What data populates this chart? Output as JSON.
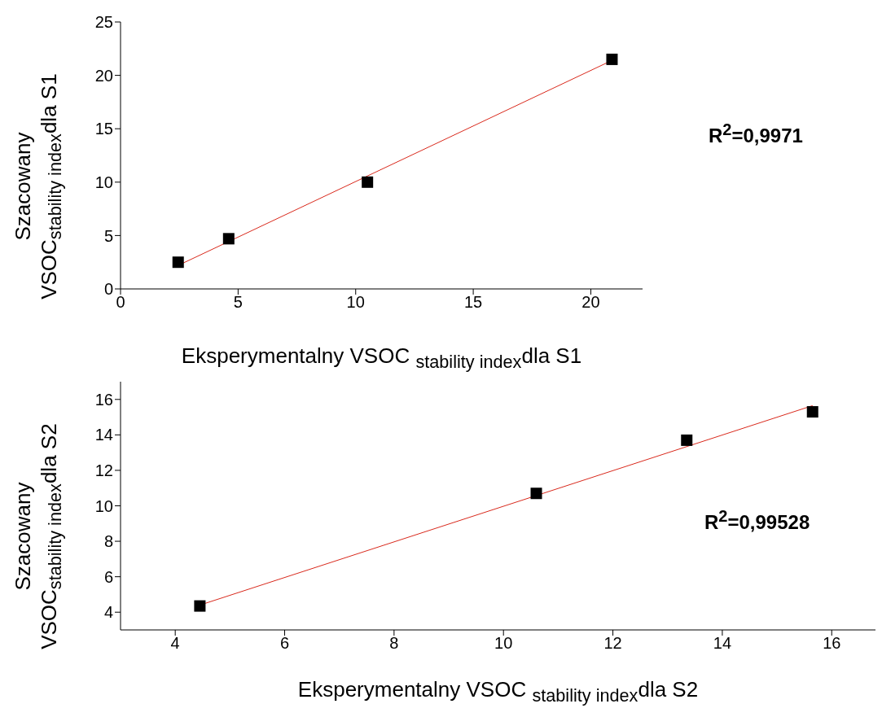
{
  "chart_data": [
    {
      "type": "scatter",
      "xlabel": "Eksperymentalny VSOC $_{stability index}$dla S1",
      "ylabel": "Szacowany\nVSOC$_{stability index}$dla S1",
      "annotations": [
        "R$^{2}$=0,9971"
      ],
      "xlim": [
        0,
        22.2
      ],
      "ylim": [
        0,
        25
      ],
      "xticks": [
        0,
        5,
        10,
        15,
        20
      ],
      "yticks": [
        0,
        5,
        10,
        15,
        20,
        25
      ],
      "grid": false,
      "legend": false,
      "series": [
        {
          "type": "scatter",
          "color": "#000000",
          "marker": "square",
          "x": [
            2.45,
            4.6,
            10.5,
            20.9
          ],
          "values": [
            2.5,
            4.7,
            10.0,
            21.5
          ]
        },
        {
          "type": "line",
          "color": "#d9291c",
          "marker": "none",
          "line_style": "solid",
          "x": [
            2.45,
            20.9
          ],
          "values": [
            2.2,
            21.4
          ]
        }
      ]
    },
    {
      "type": "scatter",
      "xlabel": "Eksperymentalny VSOC $_{stability index}$dla S2",
      "ylabel": "Szacowany\nVSOC$_{stability index}$dla S2",
      "annotations": [
        "R$^{2}$=0,99528"
      ],
      "xlim": [
        3,
        16.8
      ],
      "ylim": [
        3,
        17
      ],
      "xticks": [
        4,
        6,
        8,
        10,
        12,
        14,
        16
      ],
      "yticks": [
        4,
        6,
        8,
        10,
        12,
        14,
        16
      ],
      "grid": false,
      "legend": false,
      "series": [
        {
          "type": "scatter",
          "color": "#000000",
          "marker": "square",
          "x": [
            4.45,
            10.6,
            13.35,
            15.65
          ],
          "values": [
            4.35,
            10.7,
            13.7,
            15.3
          ]
        },
        {
          "type": "line",
          "color": "#d9291c",
          "marker": "none",
          "line_style": "solid",
          "x": [
            4.45,
            15.65
          ],
          "values": [
            4.4,
            15.65
          ]
        }
      ]
    }
  ]
}
